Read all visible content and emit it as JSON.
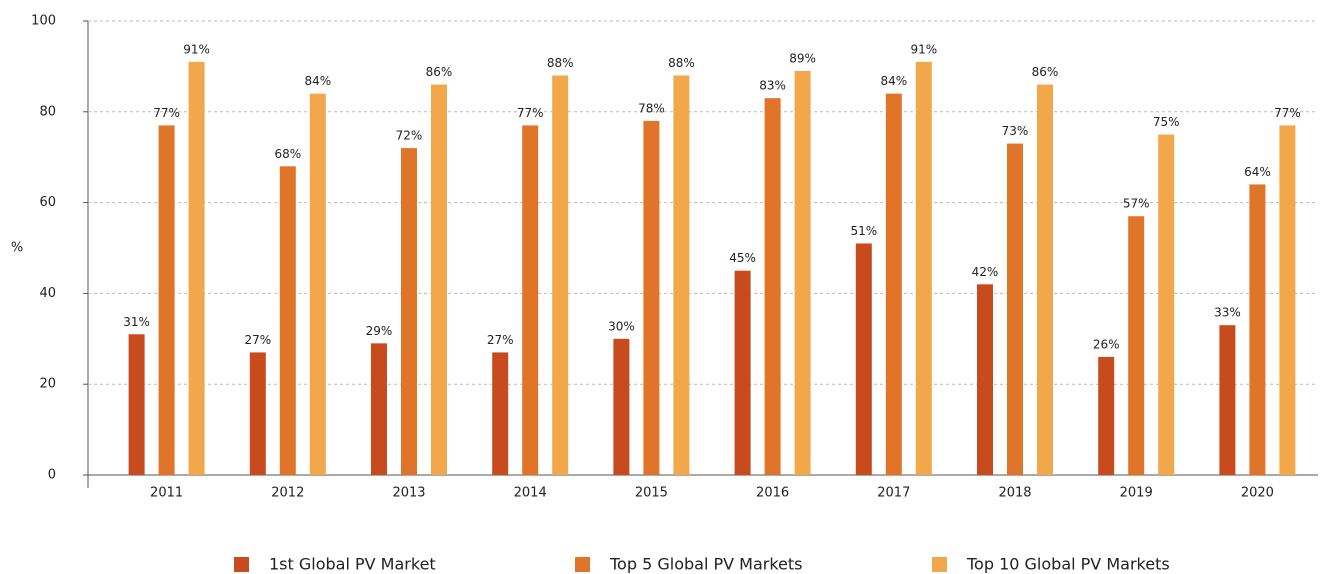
{
  "chart_data": {
    "type": "bar",
    "ylabel": "%",
    "categories": [
      "2011",
      "2012",
      "2013",
      "2014",
      "2015",
      "2016",
      "2017",
      "2018",
      "2019",
      "2020"
    ],
    "series": [
      {
        "name": "1st Global PV Market",
        "color": "#c84b1e",
        "values": [
          31,
          27,
          29,
          27,
          30,
          45,
          51,
          42,
          26,
          33
        ],
        "value_labels": [
          "31%",
          "27%",
          "29%",
          "27%",
          "30%",
          "45%",
          "51%",
          "42%",
          "26%",
          "33%"
        ]
      },
      {
        "name": "Top 5 Global PV Markets",
        "color": "#e07428",
        "values": [
          77,
          68,
          72,
          77,
          78,
          83,
          84,
          73,
          57,
          64
        ],
        "value_labels": [
          "77%",
          "68%",
          "72%",
          "77%",
          "78%",
          "83%",
          "84%",
          "73%",
          "57%",
          "64%"
        ]
      },
      {
        "name": "Top 10 Global PV Markets",
        "color": "#f2a84a",
        "values": [
          91,
          84,
          86,
          88,
          88,
          89,
          91,
          86,
          75,
          77
        ],
        "value_labels": [
          "91%",
          "84%",
          "86%",
          "88%",
          "88%",
          "89%",
          "91%",
          "86%",
          "75%",
          "77%"
        ]
      }
    ],
    "ylim": [
      0,
      100
    ],
    "yticks": [
      0,
      20,
      40,
      60,
      80,
      100
    ],
    "grid": true,
    "legend": "bottom"
  }
}
